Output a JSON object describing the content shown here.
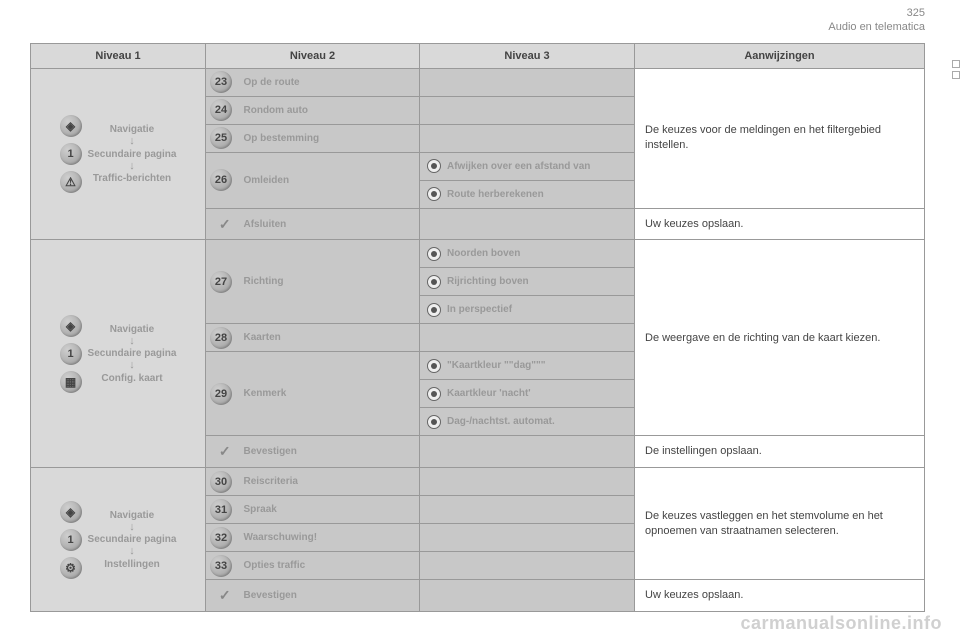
{
  "header": {
    "page_number": "325",
    "section": "Audio en telematica"
  },
  "columns": {
    "c1": "Niveau 1",
    "c2": "Niveau 2",
    "c3": "Niveau 3",
    "c4": "Aanwijzingen"
  },
  "group1": {
    "lvl1": {
      "line1": "Navigatie",
      "line2": "Secundaire pagina",
      "line3": "Traffic-berichten",
      "icons": [
        "nav-icon",
        "num-1",
        "warn-icon"
      ]
    },
    "rows": [
      {
        "num": "23",
        "label": "Op de route",
        "lvl3": []
      },
      {
        "num": "24",
        "label": "Rondom auto",
        "lvl3": []
      },
      {
        "num": "25",
        "label": "Op bestemming",
        "lvl3": []
      },
      {
        "num": "26",
        "label": "Omleiden",
        "lvl3": [
          {
            "label": "Afwijken over een afstand van"
          },
          {
            "label": "Route herberekenen"
          }
        ]
      }
    ],
    "confirm": {
      "label": "Afsluiten",
      "hint": "Uw keuzes opslaan."
    },
    "hint": "De keuzes voor de meldingen en het filtergebied instellen."
  },
  "group2": {
    "lvl1": {
      "line1": "Navigatie",
      "line2": "Secundaire pagina",
      "line3": "Config. kaart",
      "icons": [
        "nav-icon",
        "num-1",
        "grid-icon"
      ]
    },
    "rows": [
      {
        "num": "27",
        "label": "Richting",
        "lvl3": [
          {
            "label": "Noorden boven"
          },
          {
            "label": "Rijrichting boven"
          },
          {
            "label": "In perspectief"
          }
        ]
      },
      {
        "num": "28",
        "label": "Kaarten",
        "lvl3": []
      },
      {
        "num": "29",
        "label": "Kenmerk",
        "lvl3": [
          {
            "label": "\"Kaartkleur \"\"dag\"\"\""
          },
          {
            "label": "Kaartkleur 'nacht'"
          },
          {
            "label": "Dag-/nachtst. automat."
          }
        ]
      }
    ],
    "confirm": {
      "label": "Bevestigen",
      "hint": "De instellingen opslaan."
    },
    "hint": "De weergave en de richting van de kaart kiezen."
  },
  "group3": {
    "lvl1": {
      "line1": "Navigatie",
      "line2": "Secundaire pagina",
      "line3": "Instellingen",
      "icons": [
        "nav-icon",
        "num-1",
        "gear-icon"
      ]
    },
    "rows": [
      {
        "num": "30",
        "label": "Reiscriteria",
        "lvl3": []
      },
      {
        "num": "31",
        "label": "Spraak",
        "lvl3": []
      },
      {
        "num": "32",
        "label": "Waarschuwing!",
        "lvl3": []
      },
      {
        "num": "33",
        "label": "Opties traffic",
        "lvl3": []
      }
    ],
    "confirm": {
      "label": "Bevestigen",
      "hint": "Uw keuzes opslaan."
    },
    "hint": "De keuzes vastleggen en het stemvolume en het opnoemen van straatnamen selecteren."
  },
  "icon_glyphs": {
    "nav-icon": "◈",
    "warn-icon": "⚠",
    "grid-icon": "▦",
    "gear-icon": "⚙",
    "num-1": "1"
  },
  "watermark": "carmanualsonline.info"
}
